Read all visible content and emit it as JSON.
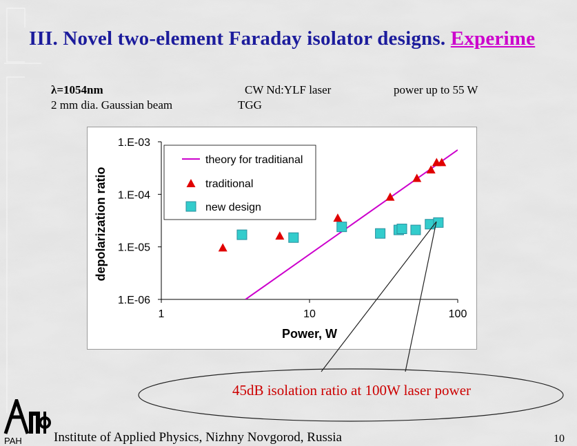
{
  "slide": {
    "title_main": "III. Novel two-element Faraday isolator designs.",
    "title_accent": "Experime",
    "wavelength": "λ=1054nm",
    "beam": "2 mm dia. Gaussian beam",
    "laser": "CW  Nd:YLF laser",
    "crystal": "TGG",
    "power": "power up to 55 W",
    "callout": "45dB isolation ratio at 100W laser power",
    "footer": "Institute of Applied Physics,  Nizhny Novgorod, Russia",
    "logo_text": "PAH",
    "page_number": "10"
  },
  "colors": {
    "title": "#1c1c9c",
    "accent": "#cc00cc",
    "callout": "#cc0000",
    "theory_line": "#cc00cc",
    "traditional": "#e00000",
    "new_design": "#33cccc"
  },
  "chart_data": {
    "type": "scatter",
    "xscale": "log",
    "yscale": "log",
    "xlim": [
      1,
      100
    ],
    "ylim": [
      1e-06,
      0.001
    ],
    "xlabel": "Power, W",
    "ylabel": "depolarization ratio",
    "x_ticks": [
      "1",
      "10",
      "100"
    ],
    "y_ticks": [
      "1.E-03",
      "1.E-04",
      "1.E-05",
      "1.E-06"
    ],
    "legend_position": "top-left",
    "grid": false,
    "series": [
      {
        "name": "theory for traditianal",
        "kind": "line",
        "x": [
          3.7,
          100
        ],
        "y": [
          1e-06,
          0.0007
        ]
      },
      {
        "name": "traditional",
        "kind": "triangle",
        "x": [
          2.6,
          6.3,
          15.5,
          35,
          53,
          66,
          72,
          78
        ],
        "y": [
          9.5e-06,
          1.6e-05,
          3.5e-05,
          8.8e-05,
          0.0002,
          0.00029,
          0.0004,
          0.0004
        ]
      },
      {
        "name": "new design",
        "kind": "square",
        "x": [
          3.5,
          7.8,
          16.5,
          30,
          40,
          42,
          52,
          65,
          74
        ],
        "y": [
          1.7e-05,
          1.5e-05,
          2.4e-05,
          1.8e-05,
          2.1e-05,
          2.2e-05,
          2.1e-05,
          2.7e-05,
          2.9e-05
        ]
      }
    ]
  }
}
